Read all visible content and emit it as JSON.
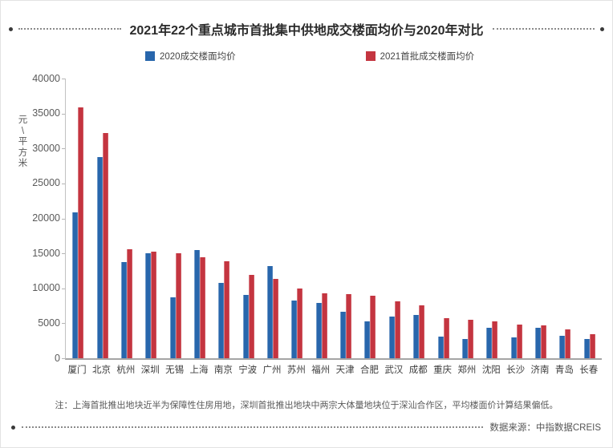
{
  "title": "2021年22个重点城市首批集中供地成交楼面均价与2020年对比",
  "legend": {
    "items": [
      {
        "label": "2020成交楼面均价",
        "color": "#2866AC"
      },
      {
        "label": "2021首批成交楼面均价",
        "color": "#C43540"
      }
    ]
  },
  "chart_data": {
    "type": "bar",
    "title": "2021年22个重点城市首批集中供地成交楼面均价与2020年对比",
    "xlabel": "",
    "ylabel": "元\\平方米",
    "ylim": [
      0,
      40000
    ],
    "ytick_step": 5000,
    "grid": false,
    "legend_position": "top",
    "categories": [
      "厦门",
      "北京",
      "杭州",
      "深圳",
      "无锡",
      "上海",
      "南京",
      "宁波",
      "广州",
      "苏州",
      "福州",
      "天津",
      "合肥",
      "武汉",
      "成都",
      "重庆",
      "郑州",
      "沈阳",
      "长沙",
      "济南",
      "青岛",
      "长春"
    ],
    "series": [
      {
        "name": "2020成交楼面均价",
        "color": "#2866AC",
        "values": [
          20900,
          28800,
          13700,
          15000,
          8700,
          15500,
          10800,
          9050,
          13200,
          8200,
          7900,
          6700,
          5250,
          6000,
          6200,
          3050,
          2800,
          4300,
          2950,
          4300,
          3200,
          2750
        ]
      },
      {
        "name": "2021首批成交楼面均价",
        "color": "#C43540",
        "values": [
          35900,
          32200,
          15550,
          15250,
          15000,
          14500,
          13850,
          11900,
          11300,
          10000,
          9250,
          9150,
          8900,
          8100,
          7550,
          5750,
          5550,
          5300,
          4800,
          4750,
          4100,
          3400
        ]
      }
    ]
  },
  "note": "注：上海首批推出地块近半为保障性住房用地，深圳首批推出地块中两宗大体量地块位于深汕合作区，平均楼面价计算结果偏低。",
  "source": "数据来源：中指数据CREIS"
}
